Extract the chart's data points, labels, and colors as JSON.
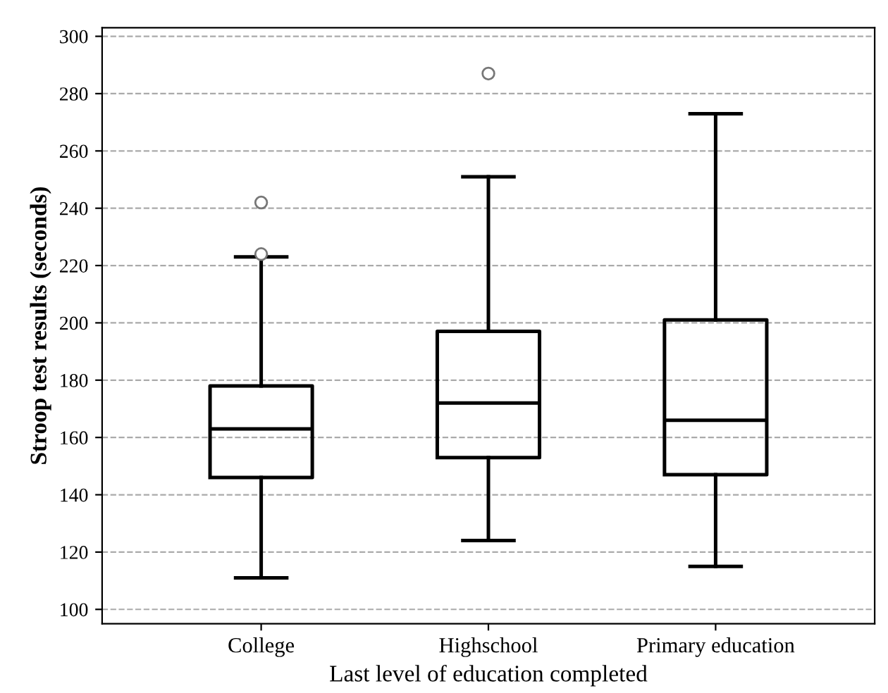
{
  "chart_data": {
    "type": "box",
    "xlabel": "Last level of education completed",
    "ylabel": "Stroop test results (seconds)",
    "categories": [
      "College",
      "Highschool",
      "Primary education"
    ],
    "boxes": [
      {
        "low": 111,
        "q1": 146,
        "median": 163,
        "q3": 178,
        "high": 223,
        "outliers": [
          224,
          242
        ]
      },
      {
        "low": 124,
        "q1": 153,
        "median": 172,
        "q3": 197,
        "high": 251,
        "outliers": [
          287
        ]
      },
      {
        "low": 115,
        "q1": 147,
        "median": 166,
        "q3": 201,
        "high": 273
      }
    ],
    "color": "#000000",
    "ylim": [
      95,
      303
    ],
    "yticks": [
      100,
      120,
      140,
      160,
      180,
      200,
      220,
      240,
      260,
      280,
      300
    ],
    "grid": "y"
  }
}
